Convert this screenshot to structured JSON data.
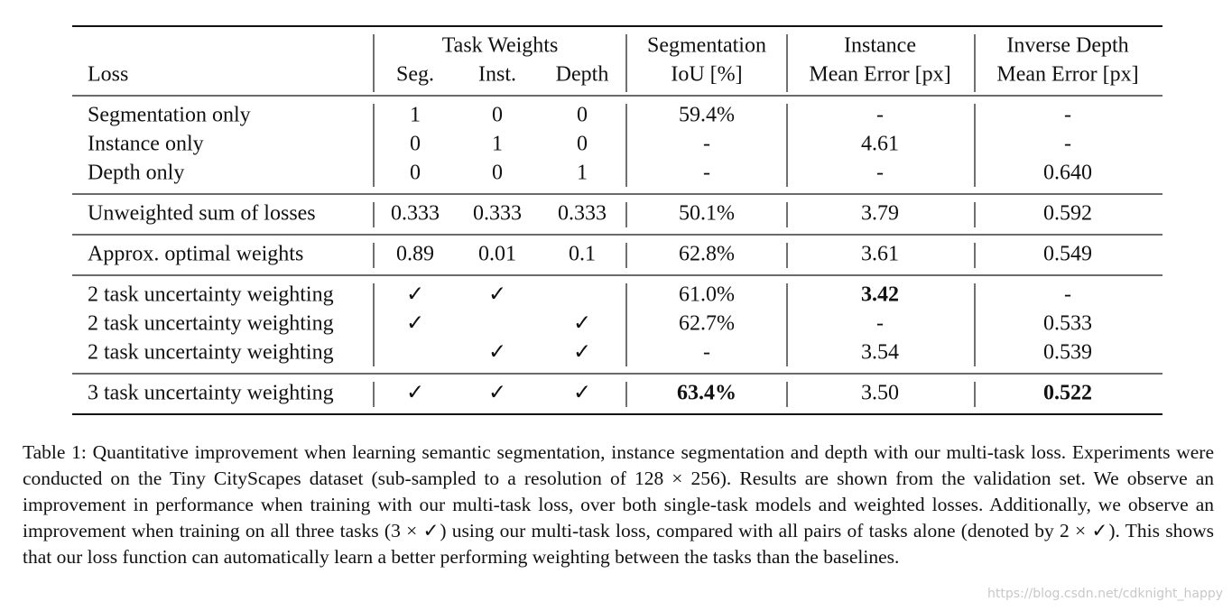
{
  "table": {
    "header": {
      "loss": "Loss",
      "task_weights": "Task Weights",
      "weight_columns": [
        "Seg.",
        "Inst.",
        "Depth"
      ],
      "segmentation": [
        "Segmentation",
        "IoU [%]"
      ],
      "instance": [
        "Instance",
        "Mean Error [px]"
      ],
      "depth": [
        "Inverse Depth",
        "Mean Error [px]"
      ]
    },
    "groups": [
      [
        [
          "Segmentation only",
          "1",
          "0",
          "0",
          "59.4%",
          "-",
          "-"
        ],
        [
          "Instance only",
          "0",
          "1",
          "0",
          "-",
          "4.61",
          "-"
        ],
        [
          "Depth only",
          "0",
          "0",
          "1",
          "-",
          "-",
          "0.640"
        ]
      ],
      [
        [
          "Unweighted sum of losses",
          "0.333",
          "0.333",
          "0.333",
          "50.1%",
          "3.79",
          "0.592"
        ]
      ],
      [
        [
          "Approx. optimal weights",
          "0.89",
          "0.01",
          "0.1",
          "62.8%",
          "3.61",
          "0.549"
        ]
      ],
      [
        [
          "2 task uncertainty weighting",
          "✓",
          "✓",
          null,
          "61.0%",
          "3.42",
          "-"
        ],
        [
          "2 task uncertainty weighting",
          "✓",
          null,
          "✓",
          "62.7%",
          "-",
          "0.533"
        ],
        [
          "2 task uncertainty weighting",
          null,
          "✓",
          "✓",
          "-",
          "3.54",
          "0.539"
        ]
      ],
      [
        [
          "3 task uncertainty weighting",
          "✓",
          "✓",
          "✓",
          "63.4%",
          "3.50",
          "0.522"
        ]
      ]
    ],
    "bold": [
      "3.0.5",
      "4.0.4",
      "4.0.6"
    ]
  },
  "caption": "Table 1: Quantitative improvement when learning semantic segmentation, instance segmentation and depth with our multi-task loss. Experiments were conducted on the Tiny CityScapes dataset (sub-sampled to a resolution of 128 × 256). Results are shown from the validation set. We observe an improvement in performance when training with our multi-task loss, over both single-task models and weighted losses. Additionally, we observe an improvement when training on all three tasks (3 × ✓) using our multi-task loss, compared with all pairs of tasks alone (denoted by 2 × ✓). This shows that our loss function can automatically learn a better performing weighting between the tasks than the baselines.",
  "watermark": "https://blog.csdn.net/cdknight_happy"
}
